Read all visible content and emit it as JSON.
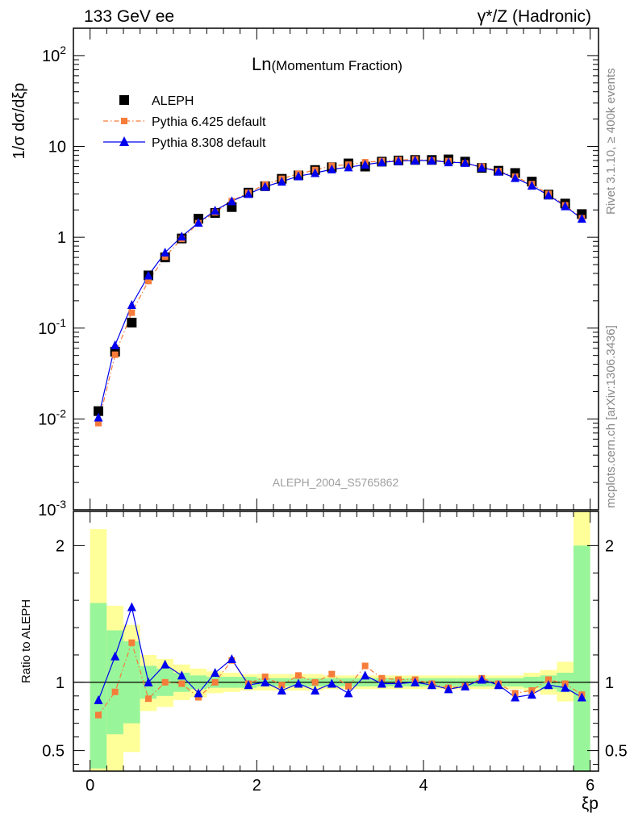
{
  "header": {
    "left": "133 GeV ee",
    "right": "γ*/Z (Hadronic)"
  },
  "main": {
    "title_main": "Ln",
    "title_sub": "(Momentum Fraction)",
    "ylabel": "1/σ dσ/dξp",
    "watermark": "ALEPH_2004_S5765862"
  },
  "ratio": {
    "ylabel": "Ratio to ALEPH"
  },
  "xaxis": {
    "label": "ξp"
  },
  "side": {
    "rivet": "Rivet 3.1.10, ≥ 400k events",
    "mcplots": "mcplots.cern.ch [arXiv:1306.3436]"
  },
  "legend": {
    "items": [
      {
        "label": "ALEPH"
      },
      {
        "label": "Pythia 6.425 default"
      },
      {
        "label": "Pythia 8.308 default"
      }
    ]
  },
  "colors": {
    "data": "#000000",
    "pythia6": "#f57c3a",
    "pythia8": "#0000ee",
    "band_inner": "#99f599",
    "band_outer": "#ffff99"
  },
  "chart_data": {
    "type": "line",
    "xlim": [
      -0.2,
      6.1
    ],
    "main_ylim": [
      0.001,
      200
    ],
    "main_yscale": "log",
    "main_yticks": [
      "10^-3",
      "10^-2",
      "10^-1",
      "1",
      "10",
      "10^2"
    ],
    "ratio_ylim": [
      0.35,
      2.25
    ],
    "ratio_yticks": [
      "0.5",
      "1",
      "2"
    ],
    "xticks": [
      "0",
      "2",
      "4",
      "6"
    ],
    "x": [
      0.1,
      0.3,
      0.5,
      0.7,
      0.9,
      1.1,
      1.3,
      1.5,
      1.7,
      1.9,
      2.1,
      2.3,
      2.5,
      2.7,
      2.9,
      3.1,
      3.3,
      3.5,
      3.7,
      3.9,
      4.1,
      4.3,
      4.5,
      4.7,
      4.9,
      5.1,
      5.3,
      5.5,
      5.7,
      5.9
    ],
    "series": [
      {
        "name": "ALEPH",
        "role": "data",
        "values": [
          0.0122,
          0.055,
          0.115,
          0.38,
          0.6,
          0.97,
          1.6,
          1.85,
          2.15,
          3.1,
          3.65,
          4.4,
          4.8,
          5.5,
          5.9,
          6.5,
          6.0,
          6.8,
          7.0,
          7.1,
          7.1,
          7.2,
          6.8,
          5.8,
          5.4,
          5.1,
          4.1,
          2.95,
          2.35,
          1.8
        ]
      },
      {
        "name": "Pythia 6.425 default",
        "role": "pythia6",
        "values": [
          0.009,
          0.051,
          0.148,
          0.33,
          0.61,
          0.96,
          1.43,
          1.88,
          2.5,
          3.1,
          3.8,
          4.4,
          5.0,
          5.5,
          6.1,
          6.3,
          6.7,
          6.9,
          7.1,
          7.2,
          7.0,
          6.9,
          6.5,
          6.0,
          5.35,
          4.65,
          3.85,
          3.0,
          2.25,
          1.62
        ]
      },
      {
        "name": "Pythia 8.308 default",
        "role": "pythia8",
        "values": [
          0.0104,
          0.065,
          0.18,
          0.38,
          0.68,
          1.02,
          1.45,
          1.97,
          2.5,
          3.0,
          3.6,
          4.1,
          4.7,
          5.1,
          5.6,
          5.9,
          6.3,
          6.7,
          6.9,
          7.0,
          7.0,
          6.7,
          6.6,
          5.85,
          5.3,
          4.5,
          3.7,
          2.9,
          2.2,
          1.6
        ]
      }
    ],
    "ratios": {
      "pythia6": [
        0.76,
        0.93,
        1.29,
        0.88,
        1.0,
        0.99,
        0.89,
        1.0,
        1.16,
        0.99,
        1.04,
        0.98,
        1.05,
        1.0,
        1.06,
        0.97,
        1.12,
        1.03,
        1.02,
        1.02,
        0.99,
        0.96,
        0.97,
        1.03,
        0.99,
        0.92,
        0.94,
        1.02,
        0.99,
        0.91
      ],
      "pythia8": [
        0.87,
        1.19,
        1.55,
        1.0,
        1.13,
        1.05,
        0.92,
        1.07,
        1.17,
        0.98,
        1.0,
        0.94,
        0.99,
        0.94,
        0.99,
        0.92,
        1.05,
        0.99,
        0.99,
        1.0,
        0.98,
        0.95,
        0.97,
        1.02,
        0.98,
        0.89,
        0.91,
        0.98,
        0.96,
        0.89
      ]
    },
    "bands": {
      "edges": [
        0.0,
        0.2,
        0.4,
        0.6,
        0.8,
        1.0,
        1.2,
        1.4,
        1.6,
        1.8,
        2.0,
        2.2,
        2.4,
        2.6,
        2.8,
        3.0,
        3.2,
        3.4,
        3.6,
        3.8,
        4.0,
        4.2,
        4.4,
        4.6,
        4.8,
        5.0,
        5.2,
        5.4,
        5.6,
        5.8,
        6.0
      ],
      "inner_lo": [
        0.37,
        0.62,
        0.7,
        0.88,
        0.9,
        0.93,
        0.95,
        0.96,
        0.96,
        0.96,
        0.97,
        0.97,
        0.97,
        0.97,
        0.97,
        0.97,
        0.97,
        0.97,
        0.97,
        0.97,
        0.97,
        0.97,
        0.97,
        0.97,
        0.97,
        0.97,
        0.96,
        0.95,
        0.93,
        0.35
      ],
      "inner_hi": [
        1.58,
        1.38,
        1.3,
        1.12,
        1.1,
        1.07,
        1.05,
        1.04,
        1.04,
        1.04,
        1.03,
        1.03,
        1.03,
        1.03,
        1.03,
        1.03,
        1.03,
        1.03,
        1.03,
        1.03,
        1.03,
        1.03,
        1.03,
        1.03,
        1.03,
        1.03,
        1.04,
        1.05,
        1.07,
        2.0
      ],
      "outer_lo": [
        0.35,
        0.35,
        0.49,
        0.79,
        0.82,
        0.87,
        0.89,
        0.92,
        0.93,
        0.94,
        0.94,
        0.94,
        0.94,
        0.94,
        0.95,
        0.95,
        0.95,
        0.95,
        0.95,
        0.95,
        0.95,
        0.95,
        0.95,
        0.95,
        0.95,
        0.95,
        0.93,
        0.91,
        0.86,
        0.35
      ],
      "outer_hi": [
        2.12,
        1.56,
        1.42,
        1.2,
        1.17,
        1.13,
        1.1,
        1.08,
        1.07,
        1.06,
        1.06,
        1.06,
        1.06,
        1.06,
        1.05,
        1.05,
        1.05,
        1.05,
        1.05,
        1.05,
        1.05,
        1.05,
        1.05,
        1.05,
        1.05,
        1.05,
        1.07,
        1.09,
        1.15,
        2.25
      ]
    }
  }
}
